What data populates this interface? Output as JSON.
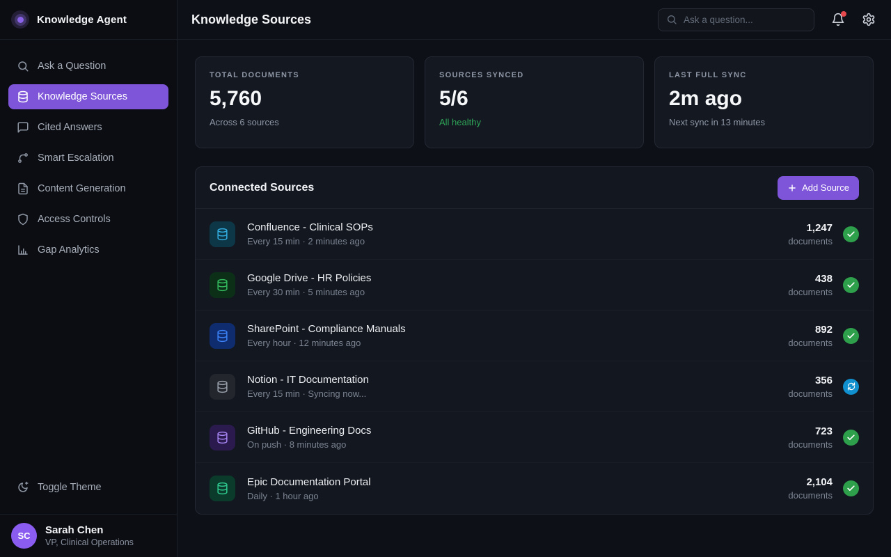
{
  "app": {
    "name": "Knowledge Agent"
  },
  "header": {
    "title": "Knowledge Sources",
    "search_placeholder": "Ask a question...",
    "has_notification": true
  },
  "sidebar": {
    "items": [
      {
        "label": "Ask a Question",
        "icon": "search",
        "active": false
      },
      {
        "label": "Knowledge Sources",
        "icon": "database",
        "active": true
      },
      {
        "label": "Cited Answers",
        "icon": "message",
        "active": false
      },
      {
        "label": "Smart Escalation",
        "icon": "branch",
        "active": false
      },
      {
        "label": "Content Generation",
        "icon": "file",
        "active": false
      },
      {
        "label": "Access Controls",
        "icon": "shield",
        "active": false
      },
      {
        "label": "Gap Analytics",
        "icon": "chart",
        "active": false
      }
    ],
    "toggle_theme_label": "Toggle Theme",
    "user": {
      "initials": "SC",
      "name": "Sarah Chen",
      "role": "VP, Clinical Operations"
    }
  },
  "stats": [
    {
      "label": "TOTAL DOCUMENTS",
      "value": "5,760",
      "sub": "Across 6 sources",
      "sub_color": "#8e96a5"
    },
    {
      "label": "SOURCES SYNCED",
      "value": "5/6",
      "sub": "All healthy",
      "sub_color": "#2ea557"
    },
    {
      "label": "LAST FULL SYNC",
      "value": "2m ago",
      "sub": "Next sync in 13 minutes",
      "sub_color": "#8e96a5"
    }
  ],
  "sources": {
    "title": "Connected Sources",
    "add_button_label": "Add Source",
    "rows": [
      {
        "name": "Confluence - Clinical SOPs",
        "schedule": "Every 15 min · 2 minutes ago",
        "count": "1,247",
        "count_label": "documents",
        "status": "synced",
        "tile_bg": "#0d3647",
        "tile_color": "#33ade0"
      },
      {
        "name": "Google Drive - HR Policies",
        "schedule": "Every 30 min · 5 minutes ago",
        "count": "438",
        "count_label": "documents",
        "status": "synced",
        "tile_bg": "#0c2f18",
        "tile_color": "#34bb5e"
      },
      {
        "name": "SharePoint - Compliance Manuals",
        "schedule": "Every hour · 12 minutes ago",
        "count": "892",
        "count_label": "documents",
        "status": "synced",
        "tile_bg": "#0f2c6e",
        "tile_color": "#3b82f6"
      },
      {
        "name": "Notion - IT Documentation",
        "schedule": "Every 15 min · Syncing now...",
        "count": "356",
        "count_label": "documents",
        "status": "syncing",
        "tile_bg": "#23262d",
        "tile_color": "#9aa1ab"
      },
      {
        "name": "GitHub - Engineering Docs",
        "schedule": "On push · 8 minutes ago",
        "count": "723",
        "count_label": "documents",
        "status": "synced",
        "tile_bg": "#2a1a4d",
        "tile_color": "#a583f0"
      },
      {
        "name": "Epic Documentation Portal",
        "schedule": "Daily · 1 hour ago",
        "count": "2,104",
        "count_label": "documents",
        "status": "synced",
        "tile_bg": "#0a3b2b",
        "tile_color": "#2fc98f"
      }
    ]
  },
  "colors": {
    "accent": "#7e55d9",
    "status_synced": "#2ea04c",
    "status_syncing": "#1090cf",
    "notification_dot": "#e5484d"
  }
}
